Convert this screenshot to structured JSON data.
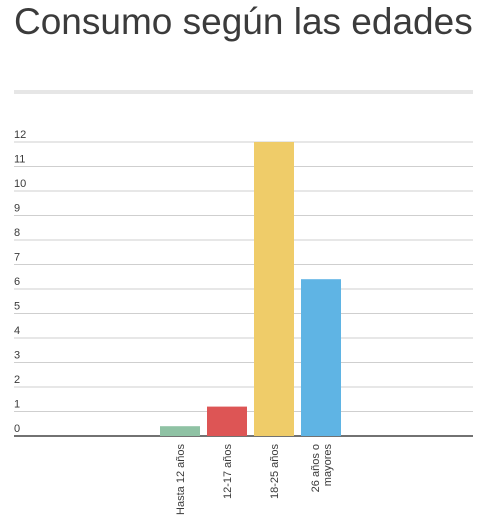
{
  "header": {
    "title": "Consumo según las edades"
  },
  "chart_data": {
    "type": "bar",
    "title": "Consumo según las edades",
    "categories": [
      "Hasta 12 años",
      "12-17 años",
      "18-25 años",
      "26 años o mayores"
    ],
    "category_label_lines": [
      [
        "Hasta 12 años"
      ],
      [
        "12-17 años"
      ],
      [
        "18-25 años"
      ],
      [
        "26 años o",
        "mayores"
      ]
    ],
    "values": [
      0.4,
      1.2,
      12,
      6.4
    ],
    "colors": [
      "#8fc2a4",
      "#dd5555",
      "#efcc69",
      "#5fb4e4"
    ],
    "ylim": [
      0,
      12
    ],
    "yticks": [
      0,
      1,
      2,
      3,
      4,
      5,
      6,
      7,
      8,
      9,
      10,
      11,
      12
    ],
    "grid": true,
    "xlabel": "",
    "ylabel": ""
  }
}
